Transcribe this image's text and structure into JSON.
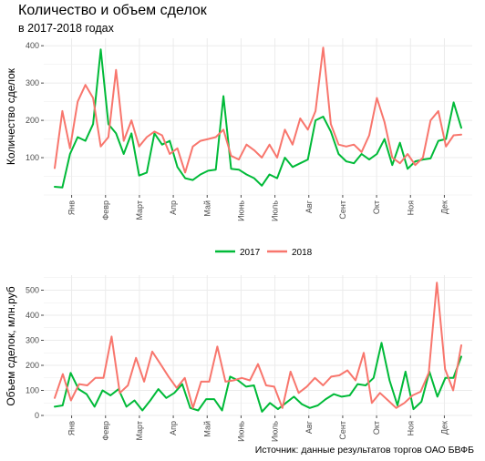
{
  "title": "Количество и объем сделок",
  "subtitle": "в 2017-2018 годах",
  "caption": "Источник: данные результатов торгов ОАО БВФБ",
  "colors": {
    "s2017": "#00ba38",
    "s2018": "#f8766d",
    "grid": "#ebebeb",
    "axis": "#4d4d4d"
  },
  "chart_data": [
    {
      "type": "line",
      "ylabel": "Количество сделок",
      "ylim": [
        0,
        420
      ],
      "yticks": [
        100,
        200,
        300,
        400
      ],
      "x_tick_labels": [
        "Янв",
        "Февр",
        "Март",
        "Апр",
        "Май",
        "Июнь",
        "Июль",
        "Авг",
        "Сент",
        "Окт",
        "Ноя",
        "Дек"
      ],
      "series": [
        {
          "name": "2017",
          "values": [
            22,
            20,
            110,
            155,
            145,
            190,
            390,
            190,
            165,
            110,
            165,
            52,
            60,
            165,
            135,
            145,
            75,
            45,
            40,
            55,
            65,
            68,
            265,
            70,
            68,
            55,
            45,
            25,
            55,
            45,
            100,
            75,
            85,
            95,
            200,
            210,
            170,
            110,
            90,
            85,
            110,
            95,
            110,
            150,
            80,
            140,
            70,
            90,
            95,
            98,
            145,
            150,
            248,
            180
          ]
        },
        {
          "name": "2018",
          "values": [
            72,
            225,
            125,
            250,
            295,
            260,
            130,
            155,
            335,
            145,
            200,
            130,
            155,
            170,
            160,
            110,
            125,
            60,
            130,
            145,
            150,
            155,
            175,
            105,
            95,
            135,
            120,
            100,
            135,
            100,
            175,
            135,
            205,
            175,
            225,
            395,
            190,
            135,
            130,
            135,
            115,
            160,
            260,
            195,
            100,
            85,
            110,
            80,
            100,
            200,
            225,
            130,
            160,
            162
          ]
        }
      ]
    },
    {
      "type": "line",
      "ylabel": "Объем сделок, млн.руб",
      "ylim": [
        0,
        560
      ],
      "yticks": [
        0,
        100,
        200,
        300,
        400,
        500
      ],
      "x_tick_labels": [
        "Янв",
        "Февр",
        "Март",
        "Апр",
        "Май",
        "Июнь",
        "Июль",
        "Авг",
        "Сент",
        "Окт",
        "Ноя",
        "Дек"
      ],
      "series": [
        {
          "name": "2017",
          "values": [
            35,
            40,
            170,
            105,
            85,
            35,
            100,
            80,
            105,
            35,
            60,
            20,
            60,
            105,
            70,
            90,
            125,
            30,
            20,
            65,
            65,
            20,
            155,
            140,
            115,
            120,
            15,
            50,
            25,
            50,
            75,
            45,
            30,
            40,
            65,
            85,
            75,
            80,
            125,
            120,
            150,
            290,
            140,
            40,
            175,
            25,
            55,
            175,
            75,
            150,
            150,
            235
          ]
        },
        {
          "name": "2018",
          "values": [
            70,
            165,
            60,
            125,
            120,
            150,
            150,
            315,
            90,
            120,
            230,
            135,
            255,
            205,
            155,
            110,
            150,
            30,
            135,
            135,
            275,
            135,
            140,
            150,
            140,
            205,
            120,
            115,
            30,
            175,
            90,
            115,
            150,
            120,
            155,
            160,
            180,
            140,
            250,
            50,
            90,
            60,
            30,
            50,
            80,
            95,
            170,
            530,
            185,
            100,
            280
          ]
        }
      ]
    }
  ],
  "legend": [
    {
      "label": "2017"
    },
    {
      "label": "2018"
    }
  ]
}
